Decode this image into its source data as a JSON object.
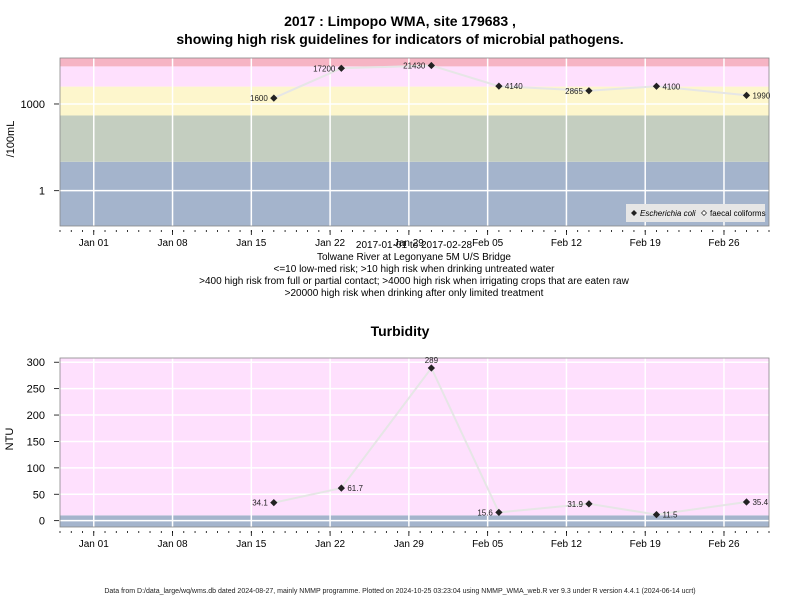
{
  "page": {
    "title_line1": "2017 : Limpopo WMA, site 179683 ,",
    "title_line2": "showing high risk guidelines for indicators of microbial pathogens.",
    "footer": "Data from D:/data_large/wq/wms.db dated 2024-08-27, mainly NMMP programme. Plotted on 2024-10-25 03:23:04 using NMMP_WMA_web.R ver 9.3 under R version 4.4.1 (2024-06-14 ucrt)"
  },
  "colors": {
    "grey_band": "#a4b4cc",
    "green_band": "#c4cec0",
    "yellow_band": "#fdf6cc",
    "pink_band": "#fee0fd",
    "red_band": "#f6b4c4",
    "line": "#e6e6e6",
    "point": "#222222"
  },
  "chart_data": [
    {
      "type": "line",
      "scale": "log10",
      "ylabel": "/100mL",
      "x_range": [
        "2016-12-29",
        "2017-03-02"
      ],
      "x_ticks": [
        {
          "date": "2017-01-01",
          "label": "Jan 01"
        },
        {
          "date": "2017-01-08",
          "label": "Jan 08"
        },
        {
          "date": "2017-01-15",
          "label": "Jan 15"
        },
        {
          "date": "2017-01-22",
          "label": "Jan 22"
        },
        {
          "date": "2017-01-29",
          "label": "Jan 29"
        },
        {
          "date": "2017-02-05",
          "label": "Feb 05"
        },
        {
          "date": "2017-02-12",
          "label": "Feb 12"
        },
        {
          "date": "2017-02-19",
          "label": "Feb 19"
        },
        {
          "date": "2017-02-26",
          "label": "Feb 26"
        }
      ],
      "y_ticks": [
        {
          "value": 1,
          "label": "1"
        },
        {
          "value": 1000,
          "label": "1000"
        }
      ],
      "ylim": [
        0.06,
        39000
      ],
      "bands": [
        {
          "from": 0.06,
          "to": 10,
          "color": "grey_band"
        },
        {
          "from": 10,
          "to": 400,
          "color": "green_band"
        },
        {
          "from": 400,
          "to": 4000,
          "color": "yellow_band"
        },
        {
          "from": 4000,
          "to": 20000,
          "color": "pink_band"
        },
        {
          "from": 20000,
          "to": 39000,
          "color": "red_band"
        }
      ],
      "points": [
        {
          "date": "2017-01-17",
          "value": 1600,
          "label": "1600",
          "label_side": "left"
        },
        {
          "date": "2017-01-23",
          "value": 17200,
          "label": "17200",
          "label_side": "left"
        },
        {
          "date": "2017-01-31",
          "value": 21430,
          "label": "21430",
          "label_side": "left"
        },
        {
          "date": "2017-02-06",
          "value": 4140,
          "label": "4140",
          "label_side": "right"
        },
        {
          "date": "2017-02-14",
          "value": 2865,
          "label": "2865",
          "label_side": "left"
        },
        {
          "date": "2017-02-20",
          "value": 4100,
          "label": "4100",
          "label_side": "right"
        },
        {
          "date": "2017-02-28",
          "value": 1990,
          "label": "1990",
          "label_side": "right"
        }
      ],
      "legend": {
        "position": "bottom-right",
        "entries": [
          {
            "label": "Escherichia coli",
            "marker": "filled-diamond"
          },
          {
            "label": "faecal coliforms",
            "marker": "open-diamond"
          }
        ]
      },
      "notes": [
        "2017-01-01 to 2017-02-28",
        "Tolwane River at Legonyane 5M U/S Bridge",
        "<=10 low-med risk; >10 high risk when drinking untreated water",
        ">400 high risk from full or partial contact; >4000 high risk when irrigating crops that are eaten raw",
        ">20000 high risk when drinking after only limited treatment"
      ]
    },
    {
      "type": "line",
      "title": "Turbidity",
      "ylabel": "NTU",
      "x_range": [
        "2016-12-29",
        "2017-03-02"
      ],
      "x_ticks": [
        {
          "date": "2017-01-01",
          "label": "Jan 01"
        },
        {
          "date": "2017-01-08",
          "label": "Jan 08"
        },
        {
          "date": "2017-01-15",
          "label": "Jan 15"
        },
        {
          "date": "2017-01-22",
          "label": "Jan 22"
        },
        {
          "date": "2017-01-29",
          "label": "Jan 29"
        },
        {
          "date": "2017-02-05",
          "label": "Feb 05"
        },
        {
          "date": "2017-02-12",
          "label": "Feb 12"
        },
        {
          "date": "2017-02-19",
          "label": "Feb 19"
        },
        {
          "date": "2017-02-26",
          "label": "Feb 26"
        }
      ],
      "y_ticks": [
        {
          "value": 0,
          "label": "0"
        },
        {
          "value": 50,
          "label": "50"
        },
        {
          "value": 100,
          "label": "100"
        },
        {
          "value": 150,
          "label": "150"
        },
        {
          "value": 200,
          "label": "200"
        },
        {
          "value": 250,
          "label": "250"
        },
        {
          "value": 300,
          "label": "300"
        }
      ],
      "ylim": [
        -12,
        308
      ],
      "bands": [
        {
          "from": -12,
          "to": 10,
          "color": "grey_band"
        },
        {
          "from": 10,
          "to": 308,
          "color": "pink_band"
        }
      ],
      "points": [
        {
          "date": "2017-01-17",
          "value": 34.1,
          "label": "34.1",
          "label_side": "left"
        },
        {
          "date": "2017-01-23",
          "value": 61.7,
          "label": "61.7",
          "label_side": "right"
        },
        {
          "date": "2017-01-31",
          "value": 289,
          "label": "289",
          "label_side": "above"
        },
        {
          "date": "2017-02-06",
          "value": 15.6,
          "label": "15.6",
          "label_side": "left"
        },
        {
          "date": "2017-02-14",
          "value": 31.9,
          "label": "31.9",
          "label_side": "left"
        },
        {
          "date": "2017-02-20",
          "value": 11.5,
          "label": "11.5",
          "label_side": "right"
        },
        {
          "date": "2017-02-28",
          "value": 35.4,
          "label": "35.4",
          "label_side": "right"
        }
      ]
    }
  ]
}
